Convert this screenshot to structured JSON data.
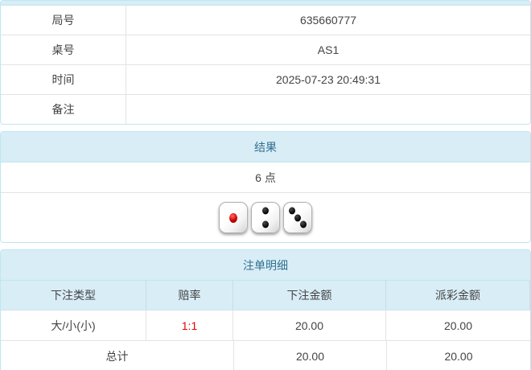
{
  "info_table": {
    "rows": [
      {
        "label": "局号",
        "value": "635660777"
      },
      {
        "label": "桌号",
        "value": "AS1"
      },
      {
        "label": "时间",
        "value": "2025-07-23 20:49:31"
      },
      {
        "label": "备注",
        "value": ""
      }
    ]
  },
  "result_panel": {
    "title": "结果",
    "points": "6 点",
    "dice": [
      {
        "value": 1,
        "pip_color": "red"
      },
      {
        "value": 2,
        "pip_color": "black"
      },
      {
        "value": 3,
        "pip_color": "black"
      }
    ]
  },
  "bet_panel": {
    "title": "注单明细",
    "columns": [
      "下注类型",
      "赔率",
      "下注金额",
      "派彩金额"
    ],
    "rows": [
      {
        "bet_type": "大/小(小)",
        "odds": "1:1",
        "bet_amount": "20.00",
        "payout": "20.00"
      }
    ],
    "total_row": {
      "label": "总计",
      "bet_amount": "20.00",
      "payout": "20.00"
    }
  },
  "colors": {
    "panel_header_bg": "#d9edf7",
    "panel_border": "#bce8f1",
    "panel_title_text": "#31708f",
    "row_divider": "#e3e3e3",
    "body_text": "#444444",
    "odds_red": "#e60000"
  }
}
